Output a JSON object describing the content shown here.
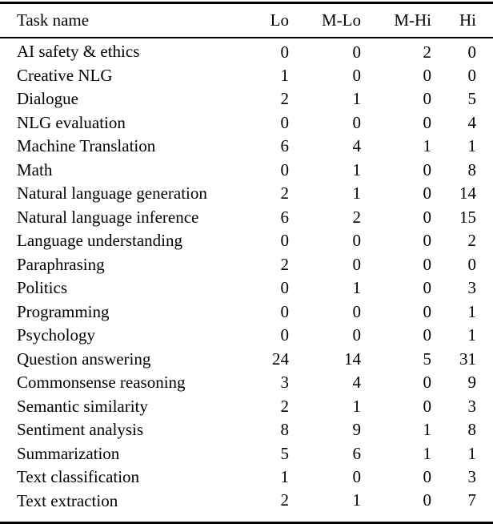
{
  "table": {
    "columns": [
      "Task name",
      "Lo",
      "M-Lo",
      "M-Hi",
      "Hi"
    ],
    "rows": [
      {
        "task": "AI safety & ethics",
        "values": [
          "0",
          "0",
          "2",
          "0"
        ]
      },
      {
        "task": "Creative NLG",
        "values": [
          "1",
          "0",
          "0",
          "0"
        ]
      },
      {
        "task": "Dialogue",
        "values": [
          "2",
          "1",
          "0",
          "5"
        ]
      },
      {
        "task": "NLG evaluation",
        "values": [
          "0",
          "0",
          "0",
          "4"
        ]
      },
      {
        "task": "Machine Translation",
        "values": [
          "6",
          "4",
          "1",
          "1"
        ]
      },
      {
        "task": "Math",
        "values": [
          "0",
          "1",
          "0",
          "8"
        ]
      },
      {
        "task": "Natural language generation",
        "values": [
          "2",
          "1",
          "0",
          "14"
        ]
      },
      {
        "task": "Natural language inference",
        "values": [
          "6",
          "2",
          "0",
          "15"
        ]
      },
      {
        "task": "Language understanding",
        "values": [
          "0",
          "0",
          "0",
          "2"
        ]
      },
      {
        "task": "Paraphrasing",
        "values": [
          "2",
          "0",
          "0",
          "0"
        ]
      },
      {
        "task": "Politics",
        "values": [
          "0",
          "1",
          "0",
          "3"
        ]
      },
      {
        "task": "Programming",
        "values": [
          "0",
          "0",
          "0",
          "1"
        ]
      },
      {
        "task": "Psychology",
        "values": [
          "0",
          "0",
          "0",
          "1"
        ]
      },
      {
        "task": "Question answering",
        "values": [
          "24",
          "14",
          "5",
          "31"
        ]
      },
      {
        "task": "Commonsense reasoning",
        "values": [
          "3",
          "4",
          "0",
          "9"
        ]
      },
      {
        "task": "Semantic similarity",
        "values": [
          "2",
          "1",
          "0",
          "3"
        ]
      },
      {
        "task": "Sentiment analysis",
        "values": [
          "8",
          "9",
          "1",
          "8"
        ]
      },
      {
        "task": "Summarization",
        "values": [
          "5",
          "6",
          "1",
          "1"
        ]
      },
      {
        "task": "Text classification",
        "values": [
          "1",
          "0",
          "0",
          "3"
        ]
      },
      {
        "task": "Text extraction",
        "values": [
          "2",
          "1",
          "0",
          "7"
        ]
      }
    ],
    "colors": {
      "text": "#000000",
      "background": "#ffffff",
      "rule": "#000000"
    }
  }
}
